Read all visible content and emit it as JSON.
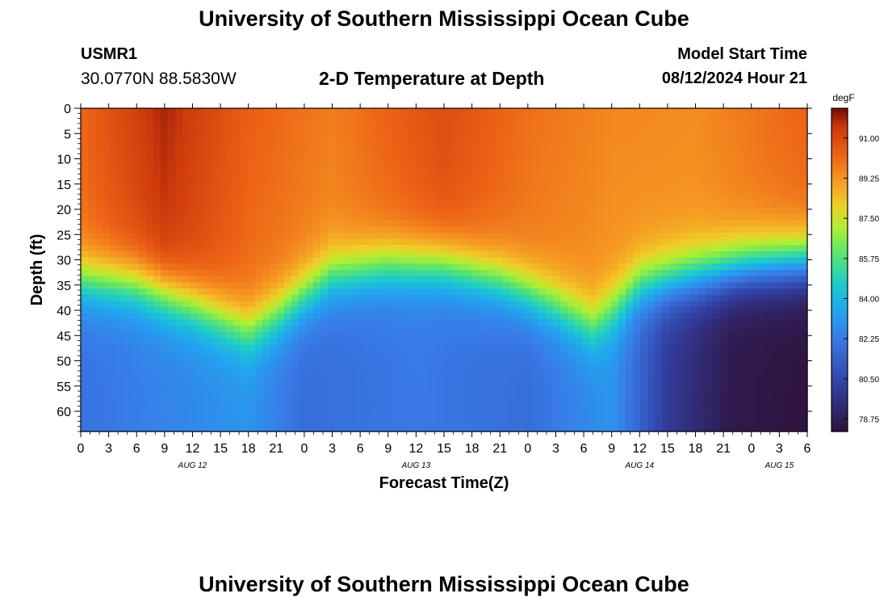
{
  "header": {
    "title": "University of Southern Mississippi Ocean Cube",
    "station_id": "USMR1",
    "station_coords": "30.0770N  88.5830W",
    "subtitle": "2-D Temperature at Depth",
    "start_label": "Model Start Time",
    "start_value": "08/12/2024 Hour 21"
  },
  "footer": {
    "title": "University of Southern Mississippi Ocean Cube"
  },
  "chart_data": {
    "type": "heatmap",
    "title": "2-D Temperature at Depth",
    "xlabel": "Forecast Time(Z)",
    "ylabel": "Depth (ft)",
    "colorbar_label": "degF",
    "colorbar_ticks": [
      "91.00",
      "89.25",
      "87.50",
      "85.75",
      "84.00",
      "82.25",
      "80.50",
      "78.75"
    ],
    "colorbar_values": [
      91.0,
      89.25,
      87.5,
      85.75,
      84.0,
      82.25,
      80.5,
      78.75
    ],
    "color_range": [
      78.2,
      92.3
    ],
    "x_range_hours": [
      0,
      78
    ],
    "y_range_ft": [
      0,
      64
    ],
    "x_tick_labels": [
      "0",
      "3",
      "6",
      "9",
      "12",
      "15",
      "18",
      "21",
      "0",
      "3",
      "6",
      "9",
      "12",
      "15",
      "18",
      "21",
      "0",
      "3",
      "6",
      "9",
      "12",
      "15",
      "18",
      "21",
      "0",
      "3",
      "6"
    ],
    "x_tick_hours": [
      0,
      3,
      6,
      9,
      12,
      15,
      18,
      21,
      24,
      27,
      30,
      33,
      36,
      39,
      42,
      45,
      48,
      51,
      54,
      57,
      60,
      63,
      66,
      69,
      72,
      75,
      78
    ],
    "day_labels": [
      {
        "label": "AUG 12",
        "hour": 12
      },
      {
        "label": "AUG 13",
        "hour": 36
      },
      {
        "label": "AUG 14",
        "hour": 60
      },
      {
        "label": "AUG 15",
        "hour": 75
      }
    ],
    "y_tick_labels": [
      "0",
      "5",
      "10",
      "15",
      "20",
      "25",
      "30",
      "35",
      "40",
      "45",
      "50",
      "55",
      "60"
    ],
    "y_tick_values": [
      0,
      5,
      10,
      15,
      20,
      25,
      30,
      35,
      40,
      45,
      50,
      55,
      60
    ],
    "thermocline_depth_ft": [
      {
        "hour": 0,
        "depth": 34
      },
      {
        "hour": 6,
        "depth": 35
      },
      {
        "hour": 12,
        "depth": 39
      },
      {
        "hour": 18,
        "depth": 44
      },
      {
        "hour": 21,
        "depth": 41
      },
      {
        "hour": 27,
        "depth": 33
      },
      {
        "hour": 33,
        "depth": 31
      },
      {
        "hour": 39,
        "depth": 31
      },
      {
        "hour": 45,
        "depth": 34
      },
      {
        "hour": 51,
        "depth": 39
      },
      {
        "hour": 55,
        "depth": 43
      },
      {
        "hour": 60,
        "depth": 35
      },
      {
        "hour": 66,
        "depth": 33
      },
      {
        "hour": 72,
        "depth": 31
      },
      {
        "hour": 78,
        "depth": 30
      }
    ],
    "surface_temp_degF": [
      {
        "hour": 0,
        "temp": 90.2
      },
      {
        "hour": 9,
        "temp": 91.8
      },
      {
        "hour": 18,
        "temp": 90.4
      },
      {
        "hour": 27,
        "temp": 89.7
      },
      {
        "hour": 39,
        "temp": 90.9
      },
      {
        "hour": 48,
        "temp": 90.0
      },
      {
        "hour": 57,
        "temp": 89.5
      },
      {
        "hour": 66,
        "temp": 89.4
      },
      {
        "hour": 78,
        "temp": 90.3
      }
    ],
    "bottom_temp_degF": [
      {
        "hour": 0,
        "temp": 82.0
      },
      {
        "hour": 18,
        "temp": 83.0
      },
      {
        "hour": 24,
        "temp": 81.8
      },
      {
        "hour": 36,
        "temp": 82.2
      },
      {
        "hour": 48,
        "temp": 81.8
      },
      {
        "hour": 57,
        "temp": 83.0
      },
      {
        "hour": 63,
        "temp": 80.0
      },
      {
        "hour": 70,
        "temp": 78.5
      },
      {
        "hour": 78,
        "temp": 78.3
      }
    ]
  }
}
